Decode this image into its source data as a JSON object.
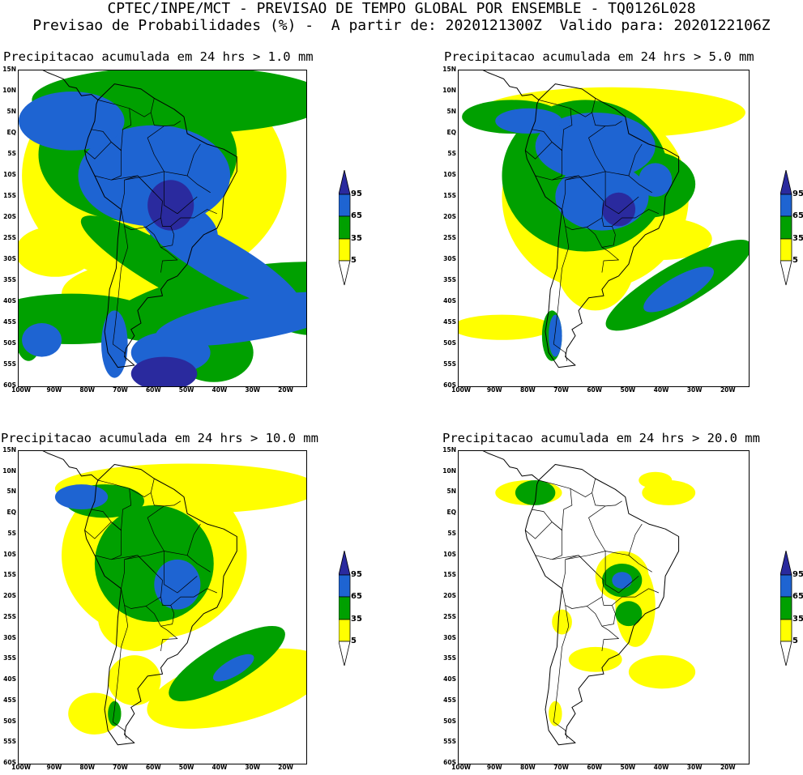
{
  "header": {
    "line1": "CPTEC/INPE/MCT - PREVISAO DE TEMPO GLOBAL POR ENSEMBLE - TQ0126L028",
    "line2": "Previsao de Probabilidades (%) -  A partir de: 2020121300Z  Valido para: 2020122106Z"
  },
  "panels": [
    {
      "title": "Precipitacao acumulada em 24 hrs > 1.0 mm"
    },
    {
      "title": "Precipitacao acumulada em 24 hrs > 5.0 mm"
    },
    {
      "title": "Precipitacao acumulada em 24 hrs > 10.0 mm"
    },
    {
      "title": "Precipitacao acumulada em 24 hrs > 20.0 mm"
    }
  ],
  "lat_labels": [
    "15N",
    "10N",
    "5N",
    "EQ",
    "5S",
    "10S",
    "15S",
    "20S",
    "25S",
    "30S",
    "35S",
    "40S",
    "45S",
    "50S",
    "55S",
    "60S"
  ],
  "lon_labels": [
    "100W",
    "90W",
    "80W",
    "70W",
    "60W",
    "50W",
    "40W",
    "30W",
    "20W"
  ],
  "legend": {
    "ticks": [
      "95",
      "65",
      "35",
      "5"
    ],
    "colors": {
      "c5": "#ffff00",
      "c35": "#00a000",
      "c65": "#1e64d2",
      "c95": "#2a2a9e"
    }
  }
}
